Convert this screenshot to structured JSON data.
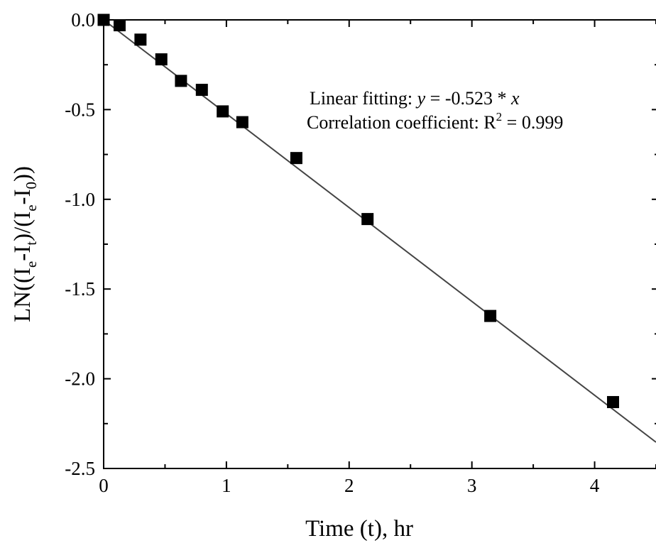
{
  "chart_data": {
    "type": "scatter",
    "title": "",
    "xlabel": "Time (t), hr",
    "ylabel": {
      "prefix": "LN((I",
      "sub1": "e",
      "mid1": "-I",
      "sub2": "t",
      "mid2": ")/(I",
      "sub3": "e",
      "mid3": "-I",
      "sub4": "0",
      "suffix": "))"
    },
    "xlim": [
      0,
      4.5
    ],
    "ylim": [
      -2.5,
      0.0
    ],
    "x_ticks": [
      0,
      1,
      2,
      3,
      4
    ],
    "x_tick_labels": [
      "0",
      "1",
      "2",
      "3",
      "4"
    ],
    "y_ticks": [
      0.0,
      -0.5,
      -1.0,
      -1.5,
      -2.0,
      -2.5
    ],
    "y_tick_labels": [
      "0.0",
      "-0.5",
      "-1.0",
      "-1.5",
      "-2.0",
      "-2.5"
    ],
    "grid": false,
    "series": [
      {
        "marker": "square",
        "color": "#000000",
        "x": [
          0.0,
          0.13,
          0.3,
          0.47,
          0.63,
          0.8,
          0.97,
          1.13,
          1.57,
          2.15,
          3.15,
          4.15
        ],
        "y": [
          0.0,
          -0.03,
          -0.11,
          -0.22,
          -0.34,
          -0.39,
          -0.51,
          -0.57,
          -0.77,
          -1.11,
          -1.65,
          -2.13
        ]
      }
    ],
    "fit_line": {
      "slope": -0.523,
      "intercept": 0,
      "color": "#444444"
    },
    "annotations": {
      "fit": {
        "prefix": "Linear fitting: ",
        "var_y": "y",
        "middle": " = -0.523 * ",
        "var_x": "x"
      },
      "corr": {
        "prefix": "Correlation coefficient: R",
        "sup": "2",
        "suffix": " = 0.999"
      }
    }
  }
}
